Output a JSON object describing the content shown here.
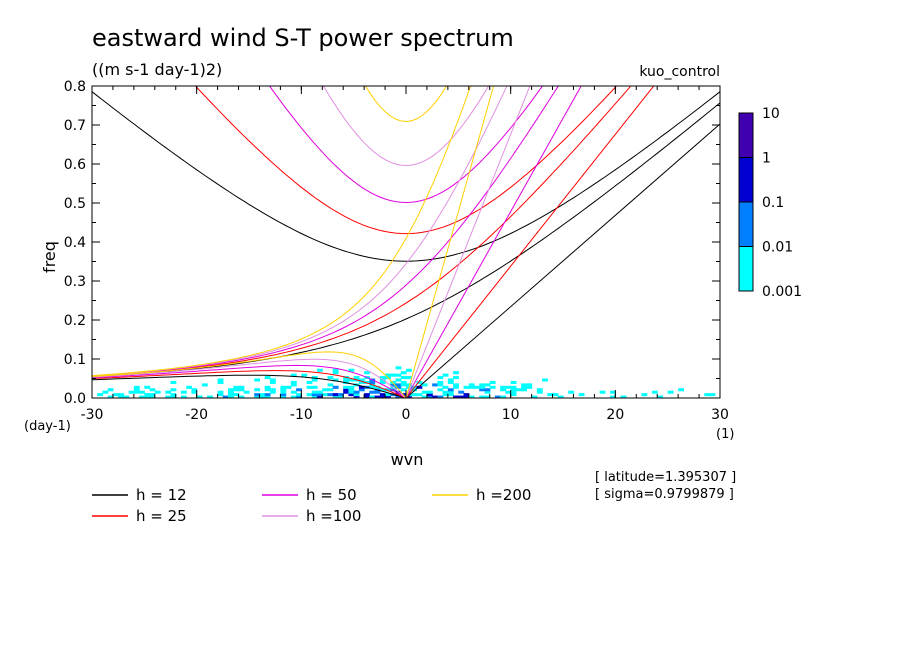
{
  "title": "eastward wind S-T power spectrum",
  "units": "((m s-1 day-1)2)",
  "experiment": "kuo_control",
  "meta": [
    "[ latitude=1.395307 ]",
    "[ sigma=0.9799879 ]"
  ],
  "chart_data": {
    "type": "heatmap",
    "xlabel": "wvn",
    "ylabel": "freq",
    "x_unit": "(1)",
    "y_unit": "(day-1)",
    "xlim": [
      -30,
      30
    ],
    "ylim": [
      0,
      0.8
    ],
    "x_ticks": [
      -30,
      -20,
      -10,
      0,
      10,
      20,
      30
    ],
    "x_tick_labels": [
      "-30",
      "-20",
      "-10",
      "0",
      "10",
      "20",
      "30"
    ],
    "y_ticks": [
      0,
      0.1,
      0.2,
      0.3,
      0.4,
      0.5,
      0.6,
      0.7,
      0.8
    ],
    "y_tick_labels": [
      "0.0",
      "0.1",
      "0.2",
      "0.3",
      "0.4",
      "0.5",
      "0.6",
      "0.7",
      "0.8"
    ],
    "colorbar": {
      "levels": [
        "0.001",
        "0.01",
        "0.1",
        "1",
        "10"
      ],
      "colors": [
        "#00ffff",
        "#0080ff",
        "#0000d0",
        "#4000b0"
      ]
    },
    "dispersion_curves": [
      {
        "label": "h = 12",
        "h": 12,
        "color": "#000000"
      },
      {
        "label": "h = 25",
        "h": 25,
        "color": "#ff0000"
      },
      {
        "label": "h = 50",
        "h": 50,
        "color": "#e000e0"
      },
      {
        "label": "h =100",
        "h": 100,
        "color": "#e090e0"
      },
      {
        "label": "h =200",
        "h": 200,
        "color": "#ffd000"
      }
    ]
  }
}
